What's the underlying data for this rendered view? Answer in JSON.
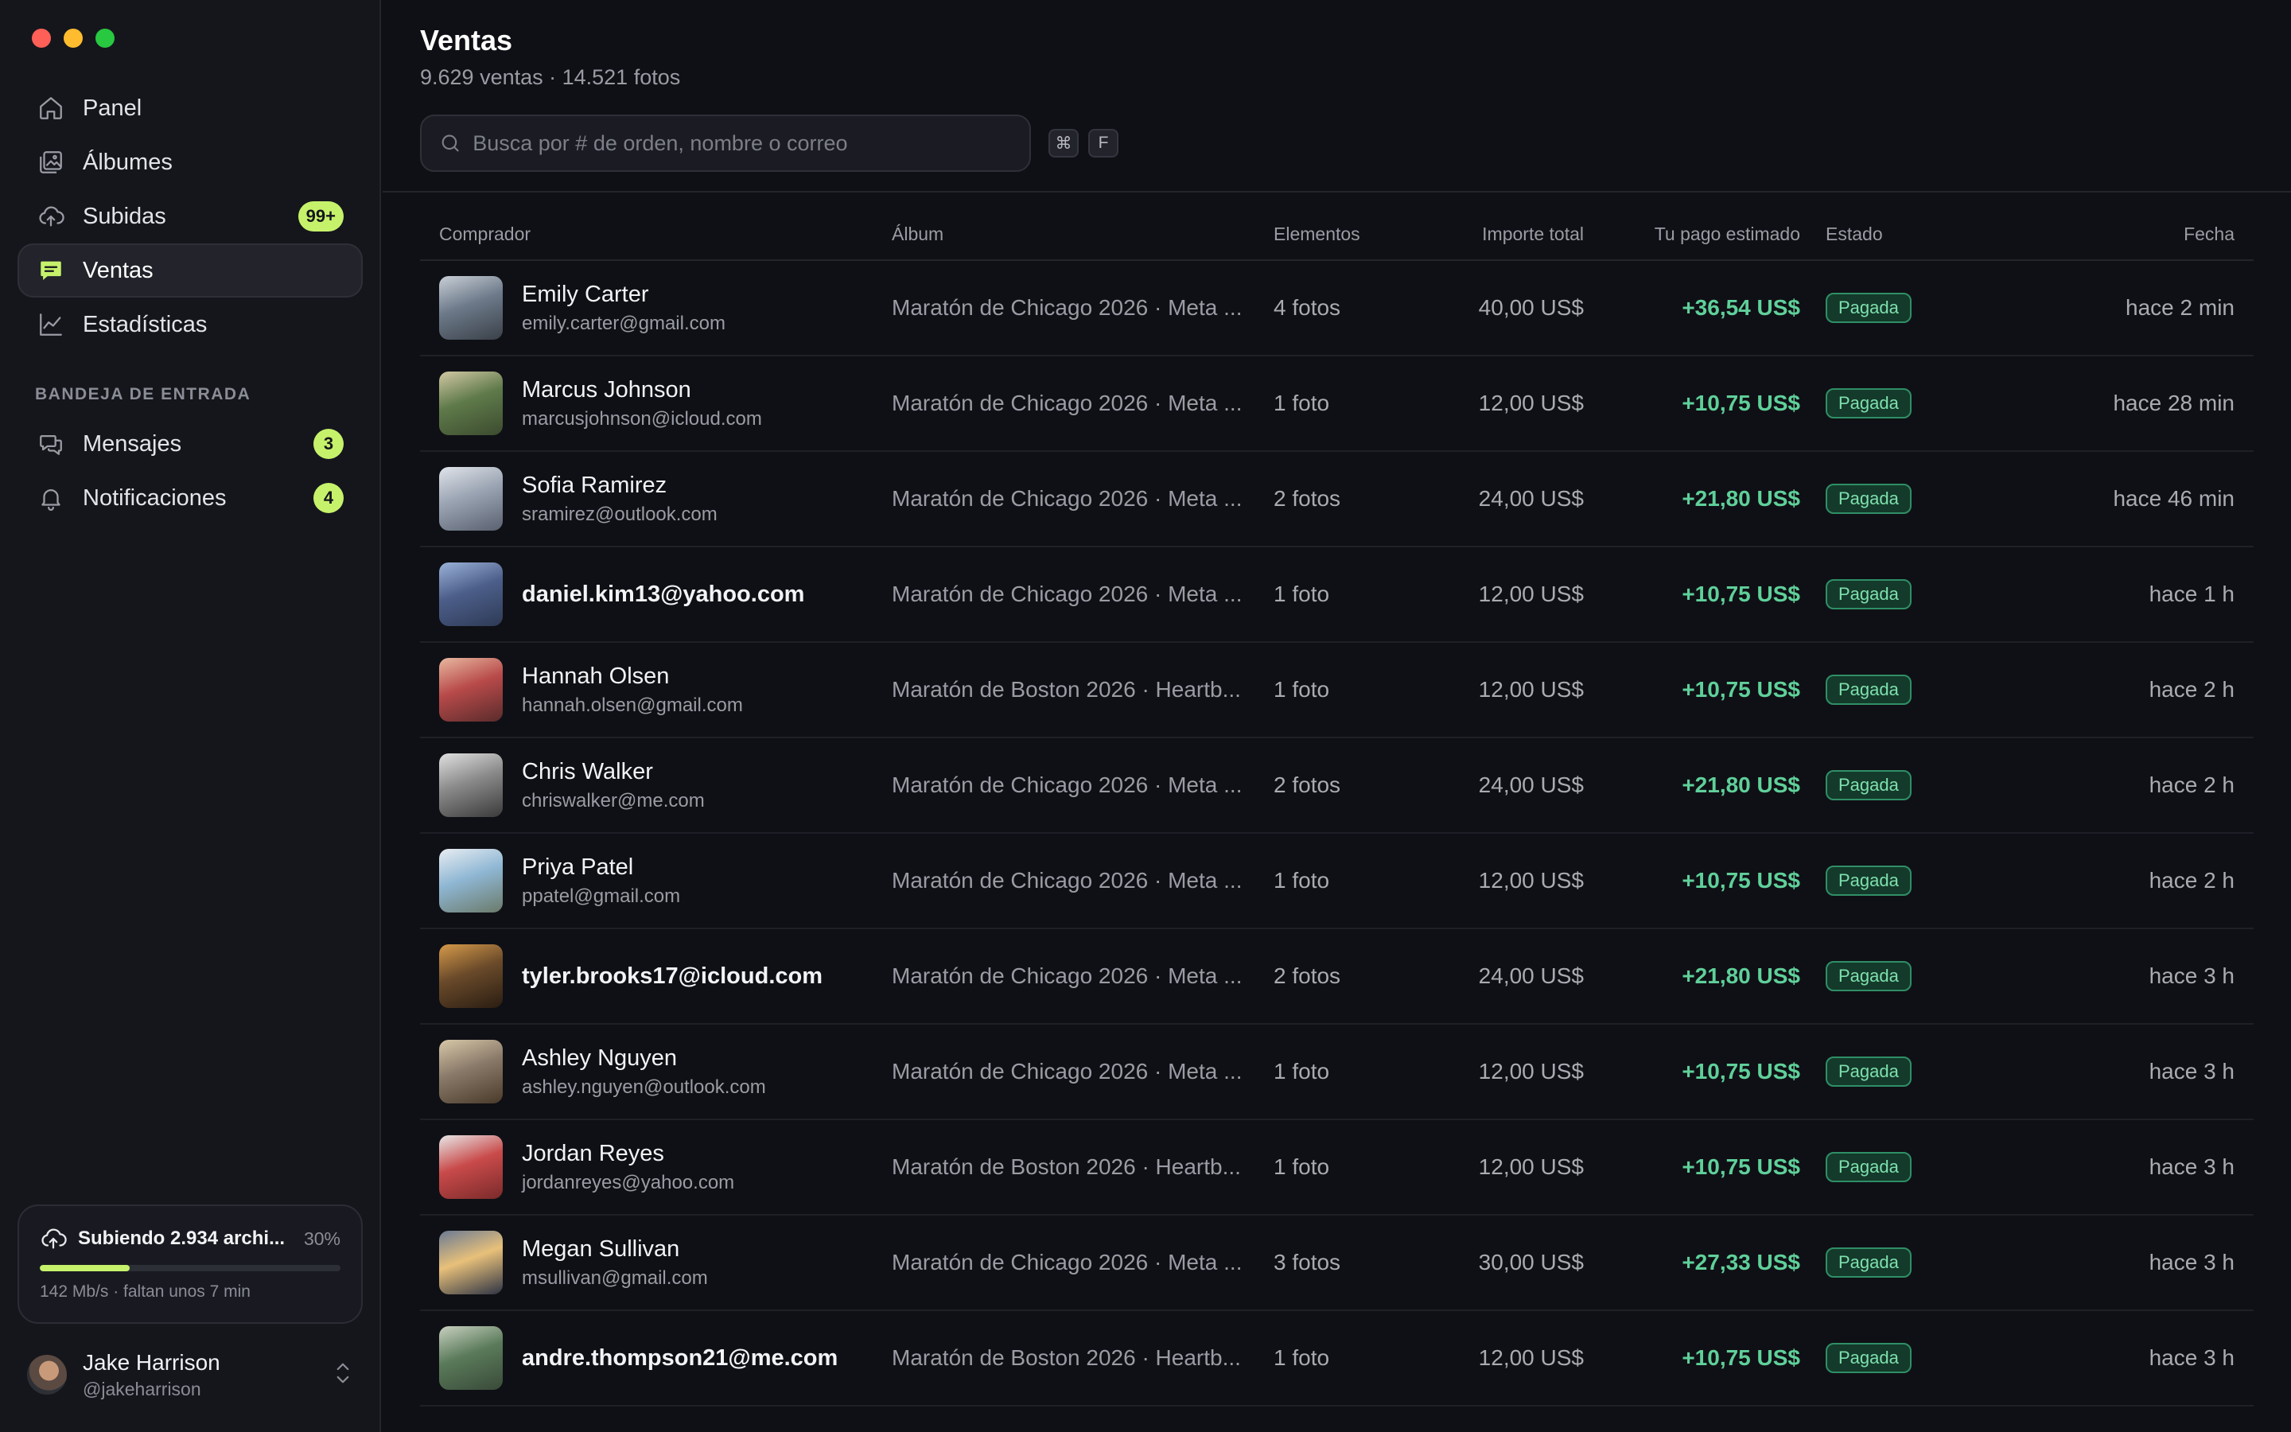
{
  "sidebar": {
    "nav": [
      {
        "label": "Panel",
        "icon": "home-icon",
        "active": false
      },
      {
        "label": "Álbumes",
        "icon": "album-icon",
        "active": false
      },
      {
        "label": "Subidas",
        "icon": "cloud-upload-icon",
        "active": false,
        "badge": "99+"
      },
      {
        "label": "Ventas",
        "icon": "sales-icon",
        "active": true
      },
      {
        "label": "Estadísticas",
        "icon": "chart-icon",
        "active": false
      }
    ],
    "section_label": "BANDEJA DE ENTRADA",
    "inbox": [
      {
        "label": "Mensajes",
        "icon": "messages-icon",
        "badge": "3"
      },
      {
        "label": "Notificaciones",
        "icon": "bell-icon",
        "badge": "4"
      }
    ],
    "upload": {
      "title": "Subiendo 2.934 archi...",
      "percent": "30%",
      "progress_fraction": 0.3,
      "subtitle": "142 Mb/s · faltan unos 7 min"
    },
    "user": {
      "name": "Jake Harrison",
      "handle": "@jakeharrison"
    }
  },
  "main": {
    "title": "Ventas",
    "subtitle": "9.629 ventas · 14.521 fotos",
    "search": {
      "placeholder": "Busca por # de orden, nombre o correo",
      "shortcut_keys": [
        "⌘",
        "F"
      ]
    },
    "columns": [
      "Comprador",
      "Álbum",
      "Elementos",
      "Importe total",
      "Tu pago estimado",
      "Estado",
      "Fecha"
    ],
    "rows": [
      {
        "name": "Emily Carter",
        "email": "emily.carter@gmail.com",
        "album": "Maratón de Chicago 2026 · Meta ...",
        "items": "4 fotos",
        "total": "40,00 US$",
        "payout": "+36,54 US$",
        "status": "Pagada",
        "date": "hace 2 min"
      },
      {
        "name": "Marcus Johnson",
        "email": "marcusjohnson@icloud.com",
        "album": "Maratón de Chicago 2026 · Meta ...",
        "items": "1 foto",
        "total": "12,00 US$",
        "payout": "+10,75 US$",
        "status": "Pagada",
        "date": "hace 28 min"
      },
      {
        "name": "Sofia Ramirez",
        "email": "sramirez@outlook.com",
        "album": "Maratón de Chicago 2026 · Meta ...",
        "items": "2 fotos",
        "total": "24,00 US$",
        "payout": "+21,80 US$",
        "status": "Pagada",
        "date": "hace 46 min"
      },
      {
        "name": "",
        "email": "daniel.kim13@yahoo.com",
        "album": "Maratón de Chicago 2026 · Meta ...",
        "items": "1 foto",
        "total": "12,00 US$",
        "payout": "+10,75 US$",
        "status": "Pagada",
        "date": "hace 1 h"
      },
      {
        "name": "Hannah Olsen",
        "email": "hannah.olsen@gmail.com",
        "album": "Maratón de Boston 2026 · Heartb...",
        "items": "1 foto",
        "total": "12,00 US$",
        "payout": "+10,75 US$",
        "status": "Pagada",
        "date": "hace 2 h"
      },
      {
        "name": "Chris Walker",
        "email": "chriswalker@me.com",
        "album": "Maratón de Chicago 2026 · Meta ...",
        "items": "2 fotos",
        "total": "24,00 US$",
        "payout": "+21,80 US$",
        "status": "Pagada",
        "date": "hace 2 h"
      },
      {
        "name": "Priya Patel",
        "email": "ppatel@gmail.com",
        "album": "Maratón de Chicago 2026 · Meta ...",
        "items": "1 foto",
        "total": "12,00 US$",
        "payout": "+10,75 US$",
        "status": "Pagada",
        "date": "hace 2 h"
      },
      {
        "name": "",
        "email": "tyler.brooks17@icloud.com",
        "album": "Maratón de Chicago 2026 · Meta ...",
        "items": "2 fotos",
        "total": "24,00 US$",
        "payout": "+21,80 US$",
        "status": "Pagada",
        "date": "hace 3 h"
      },
      {
        "name": "Ashley Nguyen",
        "email": "ashley.nguyen@outlook.com",
        "album": "Maratón de Chicago 2026 · Meta ...",
        "items": "1 foto",
        "total": "12,00 US$",
        "payout": "+10,75 US$",
        "status": "Pagada",
        "date": "hace 3 h"
      },
      {
        "name": "Jordan Reyes",
        "email": "jordanreyes@yahoo.com",
        "album": "Maratón de Boston 2026 · Heartb...",
        "items": "1 foto",
        "total": "12,00 US$",
        "payout": "+10,75 US$",
        "status": "Pagada",
        "date": "hace 3 h"
      },
      {
        "name": "Megan Sullivan",
        "email": "msullivan@gmail.com",
        "album": "Maratón de Chicago 2026 · Meta ...",
        "items": "3 fotos",
        "total": "30,00 US$",
        "payout": "+27,33 US$",
        "status": "Pagada",
        "date": "hace 3 h"
      },
      {
        "name": "",
        "email": "andre.thompson21@me.com",
        "album": "Maratón de Boston 2026 · Heartb...",
        "items": "1 foto",
        "total": "12,00 US$",
        "payout": "+10,75 US$",
        "status": "Pagada",
        "date": "hace 3 h"
      }
    ]
  },
  "colors": {
    "accent": "#c6f26b",
    "payout_green": "#5fd09a",
    "status_bg": "#143a2b",
    "status_border": "#2f8f66",
    "background": "#0f1015",
    "sidebar_bg": "#15161c"
  }
}
